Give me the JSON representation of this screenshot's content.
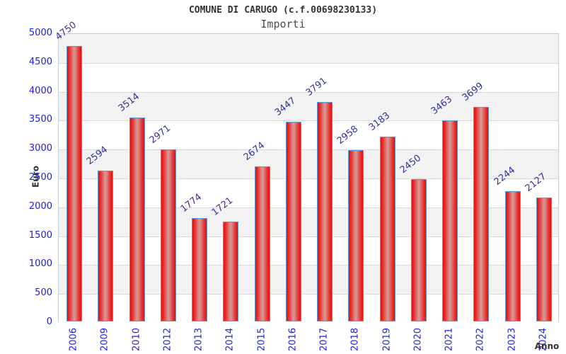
{
  "chart_data": {
    "type": "bar",
    "title": "COMUNE DI CARUGO (c.f.00698230133)",
    "subtitle": "Importi",
    "xlabel": "Anno",
    "ylabel": "Euro",
    "categories": [
      "2006",
      "2009",
      "2010",
      "2012",
      "2013",
      "2014",
      "2015",
      "2016",
      "2017",
      "2018",
      "2019",
      "2020",
      "2021",
      "2022",
      "2023",
      "2024"
    ],
    "values": [
      4750,
      2594,
      3514,
      2971,
      1774,
      1721,
      2674,
      3447,
      3791,
      2958,
      3183,
      2450,
      3463,
      3699,
      2244,
      2127
    ],
    "ylim": [
      0,
      5000
    ],
    "yticks": [
      0,
      500,
      1000,
      1500,
      2000,
      2500,
      3000,
      3500,
      4000,
      4500,
      5000
    ],
    "grid": "horizontal gridlines with alternating gray/white bands",
    "legend": false,
    "value_labels": "above each bar, rotated",
    "colors": {
      "bar_edge_red": "#e21111",
      "bar_center_highlight": "#d69490",
      "bar_border": "#5b9bd5",
      "tick_label_blue": "#1d1de0",
      "value_label_blue": "#32329b",
      "axis_title_gray": "#333333",
      "band_gray": "#f2f2f2",
      "grid_line": "#d9d9d9",
      "plot_border": "#cccccc"
    }
  }
}
